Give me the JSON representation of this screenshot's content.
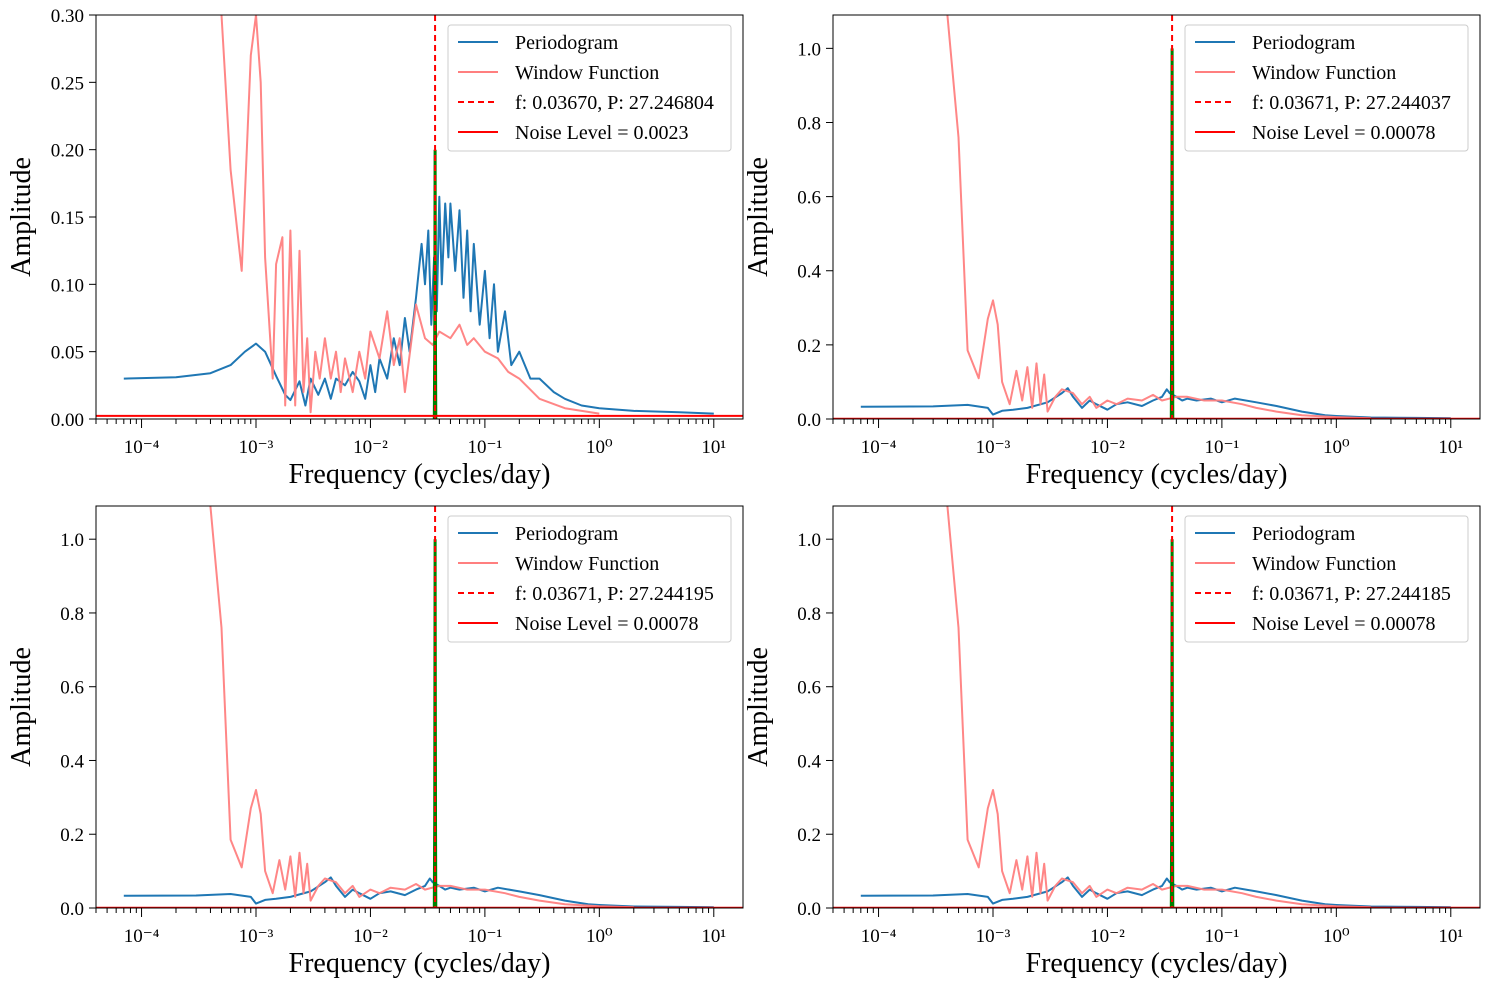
{
  "chart_data": [
    {
      "type": "line",
      "panel": "top-left",
      "xscale": "log",
      "xlim": [
        4e-05,
        18
      ],
      "ylim": [
        0,
        0.3
      ],
      "yticks": [
        0,
        0.05,
        0.1,
        0.15,
        0.2,
        0.25,
        0.3
      ],
      "ytick_labels": [
        "0.00",
        "0.05",
        "0.10",
        "0.15",
        "0.20",
        "0.25",
        "0.30"
      ],
      "xticks": [
        -4,
        -3,
        -2,
        -1,
        0,
        1
      ],
      "xtick_base": "10",
      "xlabel": "Frequency (cycles/day)",
      "ylabel": "Amplitude",
      "legend_position": "top-right",
      "peak_frequency": 0.0367,
      "peak_amplitude": 0.2,
      "noise_level": 0.0023,
      "legend": [
        "Periodogram",
        "Window Function",
        "f: 0.03670, P: 27.246804",
        "Noise Level = 0.0023"
      ],
      "series": [
        {
          "name": "Periodogram",
          "color": "#1f77b4",
          "x": [
            7e-05,
            0.0002,
            0.0004,
            0.0006,
            0.0008,
            0.001,
            0.0012,
            0.0015,
            0.0018,
            0.002,
            0.0024,
            0.0027,
            0.003,
            0.0035,
            0.004,
            0.0045,
            0.005,
            0.006,
            0.007,
            0.008,
            0.009,
            0.01,
            0.011,
            0.012,
            0.014,
            0.016,
            0.018,
            0.02,
            0.022,
            0.025,
            0.028,
            0.03,
            0.032,
            0.034,
            0.036,
            0.038,
            0.04,
            0.042,
            0.045,
            0.048,
            0.05,
            0.055,
            0.06,
            0.065,
            0.07,
            0.075,
            0.08,
            0.09,
            0.1,
            0.11,
            0.12,
            0.13,
            0.15,
            0.17,
            0.2,
            0.25,
            0.3,
            0.4,
            0.5,
            0.7,
            1,
            2,
            5,
            10
          ],
          "y": [
            0.03,
            0.031,
            0.034,
            0.04,
            0.05,
            0.056,
            0.05,
            0.032,
            0.018,
            0.014,
            0.028,
            0.01,
            0.03,
            0.018,
            0.03,
            0.015,
            0.03,
            0.025,
            0.035,
            0.028,
            0.015,
            0.04,
            0.02,
            0.045,
            0.03,
            0.06,
            0.04,
            0.075,
            0.05,
            0.09,
            0.13,
            0.1,
            0.14,
            0.07,
            0.12,
            0.08,
            0.165,
            0.1,
            0.16,
            0.12,
            0.16,
            0.11,
            0.155,
            0.09,
            0.14,
            0.08,
            0.13,
            0.07,
            0.11,
            0.06,
            0.1,
            0.05,
            0.08,
            0.04,
            0.05,
            0.03,
            0.03,
            0.02,
            0.015,
            0.01,
            0.008,
            0.006,
            0.005,
            0.004
          ]
        },
        {
          "name": "Window Function",
          "color": "#ff7f7f",
          "x": [
            0.0005,
            0.0006,
            0.00075,
            0.0009,
            0.001,
            0.0011,
            0.0012,
            0.0014,
            0.0015,
            0.0017,
            0.0018,
            0.002,
            0.0022,
            0.0024,
            0.0026,
            0.0028,
            0.003,
            0.0033,
            0.0036,
            0.004,
            0.0045,
            0.005,
            0.0055,
            0.006,
            0.007,
            0.008,
            0.009,
            0.01,
            0.012,
            0.014,
            0.016,
            0.018,
            0.02,
            0.025,
            0.03,
            0.035,
            0.04,
            0.05,
            0.06,
            0.07,
            0.08,
            0.1,
            0.13,
            0.16,
            0.2,
            0.3,
            0.5,
            1
          ],
          "y": [
            0.3,
            0.185,
            0.11,
            0.27,
            0.3,
            0.25,
            0.12,
            0.03,
            0.115,
            0.135,
            0.01,
            0.14,
            0.01,
            0.125,
            0.02,
            0.06,
            0.005,
            0.05,
            0.03,
            0.06,
            0.03,
            0.05,
            0.02,
            0.045,
            0.02,
            0.05,
            0.03,
            0.065,
            0.045,
            0.08,
            0.04,
            0.06,
            0.02,
            0.085,
            0.06,
            0.055,
            0.065,
            0.06,
            0.07,
            0.055,
            0.06,
            0.05,
            0.045,
            0.035,
            0.03,
            0.015,
            0.008,
            0.004
          ]
        }
      ]
    },
    {
      "type": "line",
      "panel": "top-right",
      "xscale": "log",
      "xlim": [
        4e-05,
        18
      ],
      "ylim": [
        0,
        1.09
      ],
      "yticks": [
        0,
        0.2,
        0.4,
        0.6,
        0.8,
        1.0
      ],
      "ytick_labels": [
        "0.0",
        "0.2",
        "0.4",
        "0.6",
        "0.8",
        "1.0"
      ],
      "xticks": [
        -4,
        -3,
        -2,
        -1,
        0,
        1
      ],
      "xtick_base": "10",
      "xlabel": "Frequency (cycles/day)",
      "ylabel": "Amplitude",
      "legend_position": "top-right",
      "peak_frequency": 0.03671,
      "peak_amplitude": 1.0,
      "noise_level": 0.00078,
      "legend": [
        "Periodogram",
        "Window Function",
        "f: 0.03671, P: 27.244037",
        "Noise Level = 0.00078"
      ],
      "series": [
        {
          "name": "Periodogram",
          "color": "#1f77b4",
          "x": [
            7e-05,
            0.0003,
            0.0006,
            0.0009,
            0.001,
            0.0012,
            0.0015,
            0.002,
            0.003,
            0.004,
            0.0045,
            0.005,
            0.006,
            0.007,
            0.008,
            0.01,
            0.012,
            0.015,
            0.02,
            0.025,
            0.03,
            0.033,
            0.035,
            0.04,
            0.045,
            0.05,
            0.06,
            0.08,
            0.1,
            0.13,
            0.2,
            0.3,
            0.5,
            0.8,
            1,
            2,
            5,
            10
          ],
          "y": [
            0.033,
            0.034,
            0.038,
            0.03,
            0.012,
            0.022,
            0.025,
            0.03,
            0.045,
            0.07,
            0.083,
            0.06,
            0.03,
            0.05,
            0.04,
            0.025,
            0.04,
            0.045,
            0.035,
            0.05,
            0.06,
            0.08,
            0.07,
            0.06,
            0.05,
            0.055,
            0.05,
            0.055,
            0.045,
            0.055,
            0.045,
            0.035,
            0.02,
            0.01,
            0.008,
            0.004,
            0.003,
            0.002
          ]
        },
        {
          "name": "Window Function",
          "color": "#ff7f7f",
          "x": [
            0.0004,
            0.0005,
            0.0006,
            0.00075,
            0.0009,
            0.001,
            0.0011,
            0.0012,
            0.0014,
            0.0016,
            0.0018,
            0.002,
            0.0022,
            0.0024,
            0.0026,
            0.0028,
            0.003,
            0.0035,
            0.004,
            0.005,
            0.006,
            0.007,
            0.008,
            0.01,
            0.012,
            0.015,
            0.02,
            0.025,
            0.03,
            0.04,
            0.05,
            0.07,
            0.1,
            0.15,
            0.2,
            0.3,
            0.5,
            1,
            2
          ],
          "y": [
            1.09,
            0.76,
            0.185,
            0.11,
            0.27,
            0.32,
            0.255,
            0.1,
            0.04,
            0.13,
            0.05,
            0.14,
            0.03,
            0.15,
            0.04,
            0.12,
            0.02,
            0.06,
            0.08,
            0.07,
            0.04,
            0.06,
            0.03,
            0.05,
            0.04,
            0.055,
            0.05,
            0.065,
            0.05,
            0.06,
            0.06,
            0.05,
            0.05,
            0.04,
            0.03,
            0.02,
            0.01,
            0.005,
            0.002
          ]
        }
      ]
    },
    {
      "type": "line",
      "panel": "bottom-left",
      "xscale": "log",
      "xlim": [
        4e-05,
        18
      ],
      "ylim": [
        0,
        1.09
      ],
      "yticks": [
        0,
        0.2,
        0.4,
        0.6,
        0.8,
        1.0
      ],
      "ytick_labels": [
        "0.0",
        "0.2",
        "0.4",
        "0.6",
        "0.8",
        "1.0"
      ],
      "xticks": [
        -4,
        -3,
        -2,
        -1,
        0,
        1
      ],
      "xtick_base": "10",
      "xlabel": "Frequency (cycles/day)",
      "ylabel": "Amplitude",
      "legend_position": "top-right",
      "peak_frequency": 0.03671,
      "peak_amplitude": 1.0,
      "noise_level": 0.00078,
      "legend": [
        "Periodogram",
        "Window Function",
        "f: 0.03671, P: 27.244195",
        "Noise Level = 0.00078"
      ],
      "series": [
        {
          "name": "Periodogram",
          "color": "#1f77b4",
          "x": [
            7e-05,
            0.0003,
            0.0006,
            0.0009,
            0.001,
            0.0012,
            0.0015,
            0.002,
            0.003,
            0.004,
            0.0045,
            0.005,
            0.006,
            0.007,
            0.008,
            0.01,
            0.012,
            0.015,
            0.02,
            0.025,
            0.03,
            0.033,
            0.035,
            0.04,
            0.045,
            0.05,
            0.06,
            0.08,
            0.1,
            0.13,
            0.2,
            0.3,
            0.5,
            0.8,
            1,
            2,
            5,
            10
          ],
          "y": [
            0.033,
            0.034,
            0.038,
            0.03,
            0.012,
            0.022,
            0.025,
            0.03,
            0.045,
            0.07,
            0.083,
            0.06,
            0.03,
            0.05,
            0.04,
            0.025,
            0.04,
            0.045,
            0.035,
            0.05,
            0.06,
            0.08,
            0.07,
            0.06,
            0.05,
            0.055,
            0.05,
            0.055,
            0.045,
            0.055,
            0.045,
            0.035,
            0.02,
            0.01,
            0.008,
            0.004,
            0.003,
            0.002
          ]
        },
        {
          "name": "Window Function",
          "color": "#ff7f7f",
          "x": [
            0.0004,
            0.0005,
            0.0006,
            0.00075,
            0.0009,
            0.001,
            0.0011,
            0.0012,
            0.0014,
            0.0016,
            0.0018,
            0.002,
            0.0022,
            0.0024,
            0.0026,
            0.0028,
            0.003,
            0.0035,
            0.004,
            0.005,
            0.006,
            0.007,
            0.008,
            0.01,
            0.012,
            0.015,
            0.02,
            0.025,
            0.03,
            0.04,
            0.05,
            0.07,
            0.1,
            0.15,
            0.2,
            0.3,
            0.5,
            1,
            2
          ],
          "y": [
            1.09,
            0.76,
            0.185,
            0.11,
            0.27,
            0.32,
            0.255,
            0.1,
            0.04,
            0.13,
            0.05,
            0.14,
            0.03,
            0.15,
            0.04,
            0.12,
            0.02,
            0.06,
            0.08,
            0.07,
            0.04,
            0.06,
            0.03,
            0.05,
            0.04,
            0.055,
            0.05,
            0.065,
            0.05,
            0.06,
            0.06,
            0.05,
            0.05,
            0.04,
            0.03,
            0.02,
            0.01,
            0.005,
            0.002
          ]
        }
      ]
    },
    {
      "type": "line",
      "panel": "bottom-right",
      "xscale": "log",
      "xlim": [
        4e-05,
        18
      ],
      "ylim": [
        0,
        1.09
      ],
      "yticks": [
        0,
        0.2,
        0.4,
        0.6,
        0.8,
        1.0
      ],
      "ytick_labels": [
        "0.0",
        "0.2",
        "0.4",
        "0.6",
        "0.8",
        "1.0"
      ],
      "xticks": [
        -4,
        -3,
        -2,
        -1,
        0,
        1
      ],
      "xtick_base": "10",
      "xlabel": "Frequency (cycles/day)",
      "ylabel": "Amplitude",
      "legend_position": "top-right",
      "peak_frequency": 0.03671,
      "peak_amplitude": 1.0,
      "noise_level": 0.00078,
      "legend": [
        "Periodogram",
        "Window Function",
        "f: 0.03671, P: 27.244185",
        "Noise Level = 0.00078"
      ],
      "series": [
        {
          "name": "Periodogram",
          "color": "#1f77b4",
          "x": [
            7e-05,
            0.0003,
            0.0006,
            0.0009,
            0.001,
            0.0012,
            0.0015,
            0.002,
            0.003,
            0.004,
            0.0045,
            0.005,
            0.006,
            0.007,
            0.008,
            0.01,
            0.012,
            0.015,
            0.02,
            0.025,
            0.03,
            0.033,
            0.035,
            0.04,
            0.045,
            0.05,
            0.06,
            0.08,
            0.1,
            0.13,
            0.2,
            0.3,
            0.5,
            0.8,
            1,
            2,
            5,
            10
          ],
          "y": [
            0.033,
            0.034,
            0.038,
            0.03,
            0.012,
            0.022,
            0.025,
            0.03,
            0.045,
            0.07,
            0.083,
            0.06,
            0.03,
            0.05,
            0.04,
            0.025,
            0.04,
            0.045,
            0.035,
            0.05,
            0.06,
            0.08,
            0.07,
            0.06,
            0.05,
            0.055,
            0.05,
            0.055,
            0.045,
            0.055,
            0.045,
            0.035,
            0.02,
            0.01,
            0.008,
            0.004,
            0.003,
            0.002
          ]
        },
        {
          "name": "Window Function",
          "color": "#ff7f7f",
          "x": [
            0.0004,
            0.0005,
            0.0006,
            0.00075,
            0.0009,
            0.001,
            0.0011,
            0.0012,
            0.0014,
            0.0016,
            0.0018,
            0.002,
            0.0022,
            0.0024,
            0.0026,
            0.0028,
            0.003,
            0.0035,
            0.004,
            0.005,
            0.006,
            0.007,
            0.008,
            0.01,
            0.012,
            0.015,
            0.02,
            0.025,
            0.03,
            0.04,
            0.05,
            0.07,
            0.1,
            0.15,
            0.2,
            0.3,
            0.5,
            1,
            2
          ],
          "y": [
            1.09,
            0.76,
            0.185,
            0.11,
            0.27,
            0.32,
            0.255,
            0.1,
            0.04,
            0.13,
            0.05,
            0.14,
            0.03,
            0.15,
            0.04,
            0.12,
            0.02,
            0.06,
            0.08,
            0.07,
            0.04,
            0.06,
            0.03,
            0.05,
            0.04,
            0.055,
            0.05,
            0.065,
            0.05,
            0.06,
            0.06,
            0.05,
            0.05,
            0.04,
            0.03,
            0.02,
            0.01,
            0.005,
            0.002
          ]
        }
      ]
    }
  ],
  "colors": {
    "periodogram": "#1f77b4",
    "window": "#ff7f7f",
    "peak_marker": "#ff0000",
    "noise": "#ff0000",
    "peak_highlight": "#008000"
  }
}
